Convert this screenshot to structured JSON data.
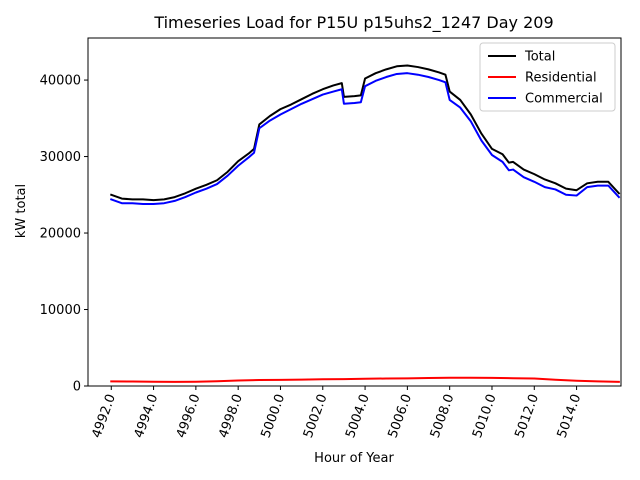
{
  "chart_data": {
    "type": "line",
    "title": "Timeseries Load for P15U p15uhs2_1247  Day 209",
    "xlabel": "Hour of Year",
    "ylabel": "kW total",
    "xlim": [
      4990.9,
      5016.1
    ],
    "ylim": [
      0,
      45500
    ],
    "x_ticks": [
      4992,
      4994,
      4996,
      4998,
      5000,
      5002,
      5004,
      5006,
      5008,
      5010,
      5012,
      5014
    ],
    "x_tick_labels": [
      "4992.0",
      "4994.0",
      "4996.0",
      "4998.0",
      "5000.0",
      "5002.0",
      "5004.0",
      "5006.0",
      "5008.0",
      "5010.0",
      "5012.0",
      "5014.0"
    ],
    "y_ticks": [
      0,
      10000,
      20000,
      30000,
      40000
    ],
    "y_tick_labels": [
      "0",
      "10000",
      "20000",
      "30000",
      "40000"
    ],
    "legend_position": "top-right",
    "series": [
      {
        "name": "Total",
        "color": "#000000",
        "points": [
          [
            4992.0,
            25000
          ],
          [
            4992.5,
            24500
          ],
          [
            4993.0,
            24400
          ],
          [
            4993.5,
            24400
          ],
          [
            4994.0,
            24300
          ],
          [
            4994.5,
            24400
          ],
          [
            4995.0,
            24700
          ],
          [
            4995.5,
            25200
          ],
          [
            4996.0,
            25800
          ],
          [
            4996.5,
            26300
          ],
          [
            4997.0,
            26900
          ],
          [
            4997.5,
            28000
          ],
          [
            4998.0,
            29400
          ],
          [
            4998.5,
            30400
          ],
          [
            4998.75,
            31000
          ],
          [
            4999.0,
            34200
          ],
          [
            4999.5,
            35300
          ],
          [
            5000.0,
            36200
          ],
          [
            5000.5,
            36800
          ],
          [
            5001.0,
            37500
          ],
          [
            5001.5,
            38200
          ],
          [
            5002.0,
            38800
          ],
          [
            5002.5,
            39300
          ],
          [
            5002.9,
            39600
          ],
          [
            5003.0,
            37800
          ],
          [
            5003.5,
            37900
          ],
          [
            5003.8,
            38000
          ],
          [
            5004.0,
            40200
          ],
          [
            5004.5,
            40900
          ],
          [
            5005.0,
            41400
          ],
          [
            5005.5,
            41800
          ],
          [
            5006.0,
            41900
          ],
          [
            5006.5,
            41700
          ],
          [
            5007.0,
            41400
          ],
          [
            5007.5,
            41000
          ],
          [
            5007.8,
            40700
          ],
          [
            5008.0,
            38500
          ],
          [
            5008.5,
            37400
          ],
          [
            5009.0,
            35500
          ],
          [
            5009.5,
            33000
          ],
          [
            5010.0,
            31000
          ],
          [
            5010.5,
            30300
          ],
          [
            5010.8,
            29200
          ],
          [
            5011.0,
            29300
          ],
          [
            5011.5,
            28300
          ],
          [
            5012.0,
            27700
          ],
          [
            5012.5,
            27000
          ],
          [
            5013.0,
            26500
          ],
          [
            5013.5,
            25800
          ],
          [
            5014.0,
            25600
          ],
          [
            5014.5,
            26500
          ],
          [
            5015.0,
            26700
          ],
          [
            5015.5,
            26700
          ],
          [
            5016.0,
            25200
          ]
        ]
      },
      {
        "name": "Residential",
        "color": "#ff0000",
        "points": [
          [
            4992.0,
            600
          ],
          [
            4993.0,
            580
          ],
          [
            4994.0,
            560
          ],
          [
            4995.0,
            540
          ],
          [
            4996.0,
            560
          ],
          [
            4997.0,
            620
          ],
          [
            4998.0,
            720
          ],
          [
            4999.0,
            780
          ],
          [
            5000.0,
            800
          ],
          [
            5001.0,
            840
          ],
          [
            5002.0,
            880
          ],
          [
            5003.0,
            900
          ],
          [
            5004.0,
            940
          ],
          [
            5005.0,
            980
          ],
          [
            5006.0,
            1000
          ],
          [
            5007.0,
            1050
          ],
          [
            5008.0,
            1080
          ],
          [
            5009.0,
            1080
          ],
          [
            5010.0,
            1060
          ],
          [
            5011.0,
            1020
          ],
          [
            5012.0,
            980
          ],
          [
            5013.0,
            820
          ],
          [
            5014.0,
            680
          ],
          [
            5015.0,
            600
          ],
          [
            5016.0,
            540
          ]
        ]
      },
      {
        "name": "Commercial",
        "color": "#0000ff",
        "points": [
          [
            4992.0,
            24400
          ],
          [
            4992.5,
            23900
          ],
          [
            4993.0,
            23900
          ],
          [
            4993.5,
            23800
          ],
          [
            4994.0,
            23800
          ],
          [
            4994.5,
            23900
          ],
          [
            4995.0,
            24200
          ],
          [
            4995.5,
            24700
          ],
          [
            4996.0,
            25300
          ],
          [
            4996.5,
            25800
          ],
          [
            4997.0,
            26400
          ],
          [
            4997.5,
            27500
          ],
          [
            4998.0,
            28800
          ],
          [
            4998.5,
            29900
          ],
          [
            4998.75,
            30500
          ],
          [
            4999.0,
            33700
          ],
          [
            4999.5,
            34700
          ],
          [
            5000.0,
            35500
          ],
          [
            5000.5,
            36200
          ],
          [
            5001.0,
            36900
          ],
          [
            5001.5,
            37500
          ],
          [
            5002.0,
            38100
          ],
          [
            5002.5,
            38500
          ],
          [
            5002.9,
            38800
          ],
          [
            5003.0,
            36900
          ],
          [
            5003.5,
            37000
          ],
          [
            5003.8,
            37100
          ],
          [
            5004.0,
            39200
          ],
          [
            5004.5,
            39900
          ],
          [
            5005.0,
            40400
          ],
          [
            5005.5,
            40800
          ],
          [
            5006.0,
            40900
          ],
          [
            5006.5,
            40700
          ],
          [
            5007.0,
            40400
          ],
          [
            5007.5,
            40000
          ],
          [
            5007.8,
            39700
          ],
          [
            5008.0,
            37400
          ],
          [
            5008.5,
            36400
          ],
          [
            5009.0,
            34600
          ],
          [
            5009.5,
            32100
          ],
          [
            5010.0,
            30200
          ],
          [
            5010.5,
            29300
          ],
          [
            5010.8,
            28200
          ],
          [
            5011.0,
            28300
          ],
          [
            5011.5,
            27300
          ],
          [
            5012.0,
            26700
          ],
          [
            5012.5,
            26000
          ],
          [
            5013.0,
            25700
          ],
          [
            5013.5,
            25000
          ],
          [
            5014.0,
            24900
          ],
          [
            5014.5,
            26000
          ],
          [
            5015.0,
            26200
          ],
          [
            5015.5,
            26200
          ],
          [
            5016.0,
            24700
          ]
        ]
      }
    ]
  }
}
